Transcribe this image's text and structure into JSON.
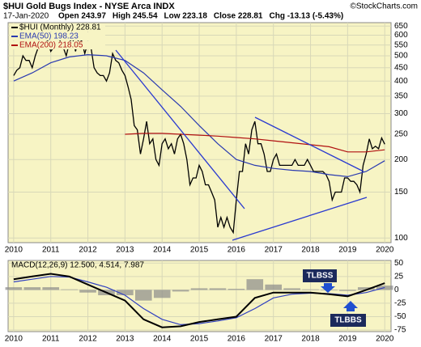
{
  "chart_data": [
    {
      "type": "line",
      "log_scale": true,
      "grid": true,
      "title": "$HUI Gold Bugs Index - NYSE Arca INDX",
      "source": "©StockCharts.com",
      "date": "17-Jan-2020",
      "stats": [
        "Open 243.97",
        "High 245.54",
        "Low 223.18",
        "Close 228.81",
        "Chg -13.13 (-5.43%)"
      ],
      "xlim": [
        2009.85,
        2020.17
      ],
      "xticks": [
        2010,
        2011,
        2012,
        2013,
        2014,
        2015,
        2016,
        2017,
        2018,
        2019,
        2020
      ],
      "ylim": [
        96,
        670
      ],
      "yticks": [
        650,
        600,
        550,
        500,
        450,
        400,
        350,
        300,
        250,
        200,
        150,
        100
      ],
      "series": [
        {
          "name": "$HUI (Monthly) 228.81",
          "color": "#000000",
          "x": [
            2010.0,
            2010.083,
            2010.167,
            2010.25,
            2010.333,
            2010.417,
            2010.5,
            2010.583,
            2010.667,
            2010.75,
            2010.833,
            2010.917,
            2011.0,
            2011.083,
            2011.167,
            2011.25,
            2011.333,
            2011.417,
            2011.5,
            2011.583,
            2011.667,
            2011.75,
            2011.833,
            2011.917,
            2012.0,
            2012.083,
            2012.167,
            2012.25,
            2012.333,
            2012.417,
            2012.5,
            2012.583,
            2012.667,
            2012.75,
            2012.833,
            2012.917,
            2013.0,
            2013.083,
            2013.167,
            2013.25,
            2013.333,
            2013.417,
            2013.5,
            2013.583,
            2013.667,
            2013.75,
            2013.833,
            2013.917,
            2014.0,
            2014.083,
            2014.167,
            2014.25,
            2014.333,
            2014.417,
            2014.5,
            2014.583,
            2014.667,
            2014.75,
            2014.833,
            2014.917,
            2015.0,
            2015.083,
            2015.167,
            2015.25,
            2015.333,
            2015.417,
            2015.5,
            2015.583,
            2015.667,
            2015.75,
            2015.833,
            2015.917,
            2016.0,
            2016.083,
            2016.167,
            2016.25,
            2016.333,
            2016.417,
            2016.5,
            2016.583,
            2016.667,
            2016.75,
            2016.833,
            2016.917,
            2017.0,
            2017.083,
            2017.167,
            2017.25,
            2017.333,
            2017.417,
            2017.5,
            2017.583,
            2017.667,
            2017.75,
            2017.833,
            2017.917,
            2018.0,
            2018.083,
            2018.167,
            2018.25,
            2018.333,
            2018.417,
            2018.5,
            2018.583,
            2018.667,
            2018.75,
            2018.833,
            2018.917,
            2019.0,
            2019.083,
            2019.167,
            2019.25,
            2019.333,
            2019.417,
            2019.5,
            2019.583,
            2019.667,
            2019.75,
            2019.833,
            2019.917,
            2020.0
          ],
          "values": [
            420,
            440,
            450,
            500,
            480,
            480,
            450,
            500,
            540,
            560,
            560,
            570,
            520,
            540,
            550,
            570,
            540,
            500,
            560,
            590,
            520,
            580,
            570,
            510,
            560,
            540,
            450,
            430,
            420,
            420,
            400,
            430,
            510,
            480,
            470,
            440,
            420,
            380,
            340,
            270,
            260,
            210,
            240,
            280,
            230,
            240,
            200,
            190,
            230,
            240,
            220,
            230,
            210,
            240,
            250,
            230,
            200,
            160,
            170,
            170,
            190,
            180,
            160,
            160,
            150,
            140,
            110,
            120,
            110,
            120,
            110,
            105,
            140,
            180,
            180,
            230,
            210,
            260,
            280,
            230,
            230,
            210,
            180,
            180,
            200,
            210,
            190,
            190,
            190,
            190,
            190,
            200,
            190,
            190,
            190,
            200,
            190,
            180,
            180,
            180,
            180,
            175,
            165,
            140,
            150,
            150,
            150,
            170,
            170,
            165,
            165,
            160,
            150,
            190,
            210,
            240,
            220,
            225,
            220,
            242,
            229
          ]
        },
        {
          "name": "EMA(50) 198.23",
          "color": "#2a3ab0",
          "x": [
            2010.0,
            2010.5,
            2011.0,
            2011.5,
            2012.0,
            2012.5,
            2013.0,
            2013.5,
            2014.0,
            2014.5,
            2015.0,
            2015.5,
            2016.0,
            2016.5,
            2017.0,
            2017.5,
            2018.0,
            2018.5,
            2019.0,
            2019.5,
            2020.0
          ],
          "values": [
            400,
            430,
            470,
            495,
            505,
            500,
            480,
            430,
            370,
            320,
            270,
            230,
            200,
            190,
            185,
            182,
            180,
            175,
            172,
            180,
            198
          ]
        },
        {
          "name": "EMA(200) 218.05",
          "color": "#b01010",
          "x": [
            2013.0,
            2013.5,
            2014.0,
            2014.5,
            2015.0,
            2015.5,
            2016.0,
            2016.5,
            2017.0,
            2017.5,
            2018.0,
            2018.5,
            2019.0,
            2019.5,
            2020.0
          ],
          "values": [
            250,
            252,
            252,
            250,
            248,
            246,
            243,
            240,
            236,
            232,
            228,
            224,
            214,
            214,
            218
          ]
        }
      ]
    },
    {
      "type": "macd",
      "grid": true,
      "title": "MACD(12,26,9) 12.500, 4.514, 7.987",
      "annotations": [
        "TLBSS",
        "TLBBS"
      ],
      "xlim": [
        2009.85,
        2020.17
      ],
      "xticks": [
        2010,
        2011,
        2012,
        2013,
        2014,
        2015,
        2016,
        2017,
        2018,
        2019,
        2020
      ],
      "ylim": [
        -78,
        55
      ],
      "yticks": [
        50,
        25,
        0,
        -25,
        -50,
        -75
      ],
      "x": [
        2010.0,
        2010.5,
        2011.0,
        2011.5,
        2012.0,
        2012.5,
        2013.0,
        2013.5,
        2014.0,
        2014.5,
        2015.0,
        2015.5,
        2016.0,
        2016.5,
        2017.0,
        2017.5,
        2018.0,
        2018.5,
        2019.0,
        2019.5,
        2020.0
      ],
      "series": [
        {
          "color": "#000000",
          "values": [
            20,
            25,
            30,
            25,
            10,
            -5,
            -20,
            -55,
            -70,
            -68,
            -60,
            -55,
            -50,
            -15,
            -5,
            -5,
            -5,
            -8,
            -12,
            0,
            12.5
          ]
        },
        {
          "color": "#3040c0",
          "values": [
            15,
            20,
            25,
            24,
            15,
            5,
            -10,
            -35,
            -55,
            -65,
            -63,
            -58,
            -52,
            -35,
            -15,
            -8,
            -6,
            -7,
            -10,
            -5,
            4.514
          ]
        },
        {
          "color": "#8a8a8a",
          "values": [
            5,
            5,
            5,
            1,
            -5,
            -10,
            -10,
            -20,
            -15,
            -3,
            3,
            3,
            2,
            20,
            10,
            3,
            1,
            -1,
            -2,
            5,
            7.987
          ]
        }
      ]
    }
  ]
}
